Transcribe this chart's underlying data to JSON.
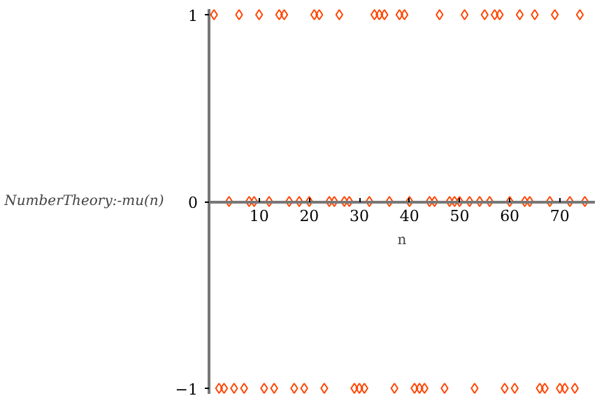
{
  "chart_data": {
    "type": "scatter",
    "xlabel": "n",
    "ylabel": "NumberTheory:-mu(n)",
    "x": [
      1,
      2,
      3,
      4,
      5,
      6,
      7,
      8,
      9,
      10,
      11,
      12,
      13,
      14,
      15,
      16,
      17,
      18,
      19,
      20,
      21,
      22,
      23,
      24,
      25,
      26,
      27,
      28,
      29,
      30,
      31,
      32,
      33,
      34,
      35,
      36,
      37,
      38,
      39,
      40,
      41,
      42,
      43,
      44,
      45,
      46,
      47,
      48,
      49,
      50,
      51,
      52,
      53,
      54,
      55,
      56,
      57,
      58,
      59,
      60,
      61,
      62,
      63,
      64,
      65,
      66,
      67,
      68,
      69,
      70,
      71,
      72,
      73,
      74,
      75
    ],
    "series": [
      {
        "color": "#ff4500",
        "values": [
          1,
          -1,
          -1,
          0,
          -1,
          1,
          -1,
          0,
          0,
          1,
          -1,
          0,
          -1,
          1,
          1,
          0,
          -1,
          0,
          -1,
          0,
          1,
          1,
          -1,
          0,
          0,
          1,
          0,
          0,
          -1,
          -1,
          -1,
          0,
          1,
          1,
          1,
          0,
          -1,
          1,
          1,
          0,
          -1,
          -1,
          -1,
          0,
          0,
          1,
          -1,
          0,
          0,
          0,
          1,
          0,
          -1,
          0,
          1,
          0,
          1,
          1,
          -1,
          0,
          -1,
          1,
          0,
          0,
          1,
          -1,
          -1,
          0,
          1,
          -1,
          -1,
          0,
          -1,
          1,
          0
        ]
      }
    ],
    "marker": "diamond",
    "grid": false,
    "xlim": [
      0,
      77
    ],
    "xticks": [
      10,
      20,
      30,
      40,
      50,
      60,
      70
    ],
    "ylim": [
      -1.03,
      1.03
    ],
    "yticks": [
      {
        "value": -1,
        "label": "−1"
      },
      0,
      1
    ]
  }
}
